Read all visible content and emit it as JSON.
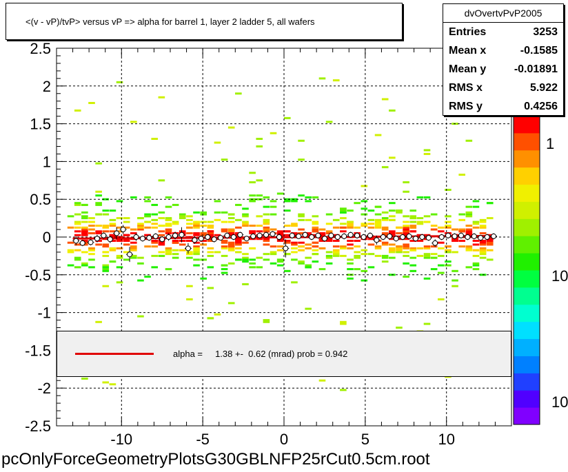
{
  "title": "<(v - vP)/tvP> versus   vP => alpha for barrel 1, layer 2 ladder 5, all wafers",
  "stats": {
    "name": "dvOvertvPvP2005",
    "rows": [
      {
        "label": "Entries",
        "value": "3253"
      },
      {
        "label": "Mean x",
        "value": "-0.1585"
      },
      {
        "label": "Mean y",
        "value": "-0.01891"
      },
      {
        "label": "RMS x",
        "value": "5.922"
      },
      {
        "label": "RMS y",
        "value": "0.4256"
      }
    ]
  },
  "legend": {
    "text": "alpha =     1.38 +-  0.62 (mrad) prob = 0.942",
    "line_color": "#e00000"
  },
  "footer": "pcOnlyForceGeometryPlotsG30GBLNFP25rCut0.5cm.root",
  "palette_labels": [
    "1",
    "10",
    "10"
  ],
  "chart_data": {
    "type": "scatter",
    "xlim": [
      -14,
      14
    ],
    "ylim": [
      -2.5,
      2.5
    ],
    "x_ticks": [
      -10,
      -5,
      0,
      5,
      10
    ],
    "y_ticks": [
      -2.5,
      -2,
      -1.5,
      -1,
      -0.5,
      0,
      0.5,
      1,
      1.5,
      2,
      2.5
    ],
    "x_tick_labels": [
      "-10",
      "-5",
      "0",
      "5",
      "10"
    ],
    "y_tick_labels": [
      "-2.5",
      "-2",
      "-1.5",
      "-1",
      "-0.5",
      "0",
      "0.5",
      "1",
      "1.5",
      "2",
      "2.5"
    ],
    "grid": true,
    "fit_line": {
      "slope": 0.00138,
      "intercept": -0.003,
      "x_range": [
        -13,
        13
      ],
      "color": "#e00000"
    },
    "profile_points": {
      "x": [
        -12.8,
        -12.4,
        -11.9,
        -11.5,
        -11.1,
        -10.7,
        -10.3,
        -9.9,
        -9.5,
        -9.1,
        -8.7,
        -8.3,
        -7.9,
        -7.5,
        -7.1,
        -6.7,
        -6.3,
        -5.9,
        -5.5,
        -5.1,
        -4.7,
        -4.3,
        -3.9,
        -3.5,
        -3.1,
        -2.7,
        -2.3,
        -1.9,
        -1.5,
        -1.1,
        -0.7,
        -0.3,
        0.1,
        0.5,
        0.9,
        1.3,
        1.7,
        2.1,
        2.5,
        2.9,
        3.3,
        3.7,
        4.1,
        4.5,
        4.9,
        5.3,
        5.7,
        6.1,
        6.5,
        6.9,
        7.3,
        7.7,
        8.1,
        8.5,
        8.9,
        9.3,
        9.7,
        10.1,
        10.5,
        10.9,
        11.3,
        11.7,
        12.1,
        12.5,
        12.9
      ],
      "y": [
        -0.05,
        -0.08,
        -0.07,
        -0.02,
        0.02,
        -0.03,
        0.05,
        0.1,
        -0.23,
        0.0,
        -0.02,
        -0.01,
        0.01,
        -0.03,
        0.0,
        0.02,
        0.03,
        -0.15,
        -0.04,
        -0.02,
        0.0,
        -0.03,
        -0.01,
        0.02,
        0.0,
        0.03,
        -0.02,
        0.01,
        0.02,
        0.03,
        0.04,
        0.0,
        -0.15,
        0.02,
        0.01,
        0.03,
        0.0,
        0.02,
        -0.02,
        0.02,
        0.0,
        0.01,
        0.03,
        0.02,
        0.0,
        0.02,
        -0.04,
        0.0,
        0.01,
        -0.02,
        0.0,
        0.01,
        -0.02,
        0.0,
        -0.01,
        -0.08,
        0.0,
        0.02,
        0.01,
        0.02,
        0.0,
        0.01,
        -0.01,
        0.0,
        0.01
      ],
      "err": [
        0.06,
        0.04,
        0.04,
        0.05,
        0.04,
        0.05,
        0.08,
        0.06,
        0.1,
        0.05,
        0.04,
        0.04,
        0.04,
        0.04,
        0.05,
        0.05,
        0.1,
        0.07,
        0.05,
        0.04,
        0.04,
        0.04,
        0.03,
        0.04,
        0.04,
        0.04,
        0.03,
        0.04,
        0.04,
        0.04,
        0.04,
        0.05,
        0.12,
        0.04,
        0.03,
        0.04,
        0.04,
        0.04,
        0.04,
        0.04,
        0.04,
        0.04,
        0.04,
        0.04,
        0.04,
        0.04,
        0.06,
        0.04,
        0.04,
        0.04,
        0.04,
        0.04,
        0.04,
        0.04,
        0.04,
        0.05,
        0.04,
        0.04,
        0.04,
        0.04,
        0.04,
        0.04,
        0.04,
        0.04,
        0.04
      ]
    },
    "color_scale": {
      "type": "log",
      "colors": [
        "#8000ff",
        "#5000ff",
        "#2040ff",
        "#0080ff",
        "#00b0ff",
        "#00e0ff",
        "#00ffd0",
        "#00ff90",
        "#00ff40",
        "#20f000",
        "#60f000",
        "#a0f000",
        "#d0f000",
        "#f0f000",
        "#ffd000",
        "#ff9000",
        "#ff5000",
        "#ff0000"
      ]
    }
  }
}
